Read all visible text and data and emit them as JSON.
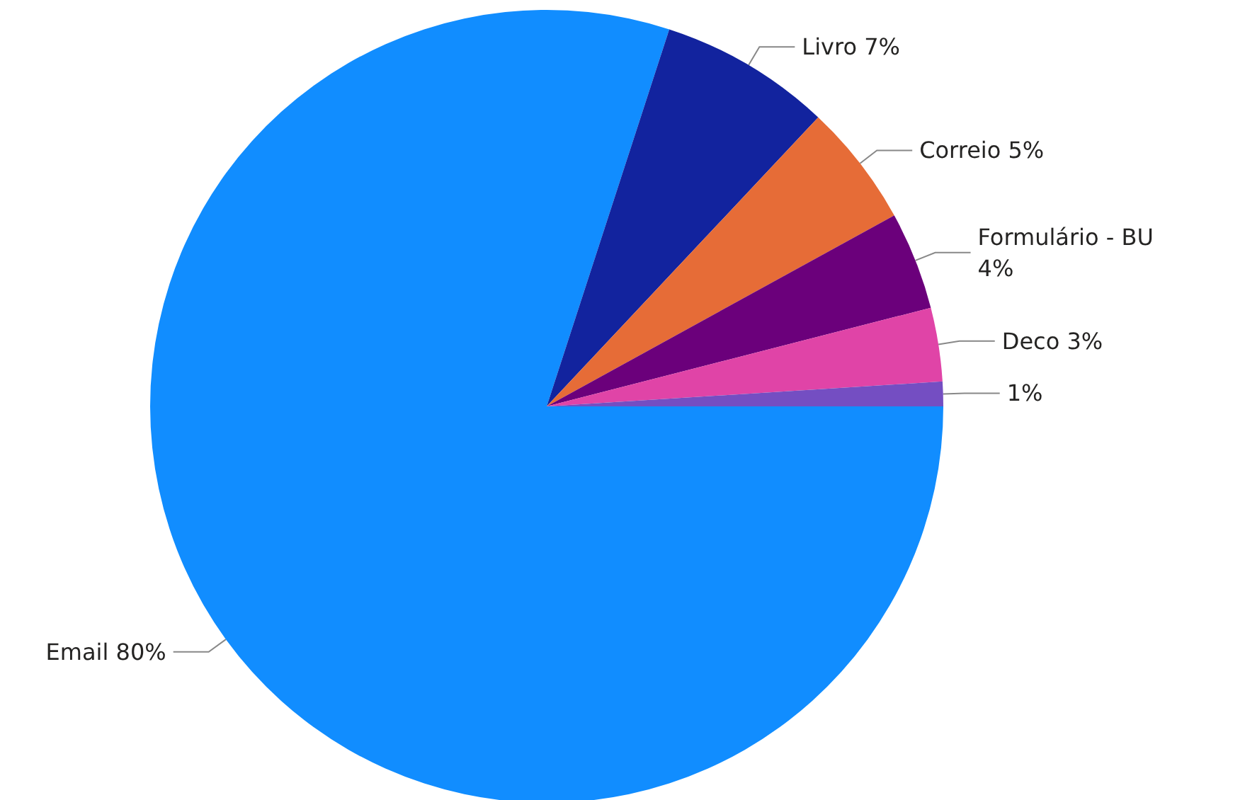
{
  "chart_data": {
    "type": "pie",
    "categories": [
      "Email",
      "Livro",
      "Correio",
      "Formulário - BU",
      "Deco",
      null
    ],
    "values": [
      80,
      7,
      5,
      4,
      3,
      1
    ],
    "value_labels": [
      "80%",
      "7%",
      "5%",
      "4%",
      "3%",
      "1%"
    ],
    "colors": [
      "#118dff",
      "#12239e",
      "#e66c37",
      "#6b007b",
      "#e044a7",
      "#744ec2"
    ],
    "legend": false
  }
}
